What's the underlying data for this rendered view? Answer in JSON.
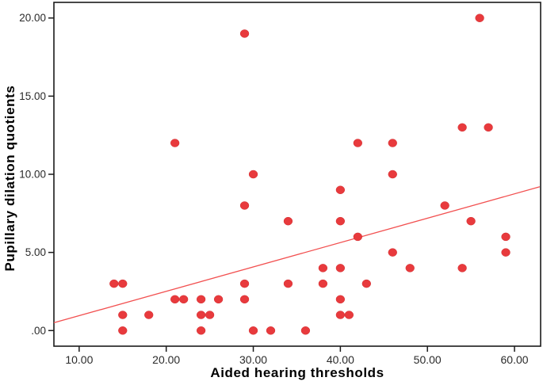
{
  "chart_data": {
    "type": "scatter",
    "title": "",
    "xlabel": "Aided hearing thresholds",
    "ylabel": "Pupillary dilation quotients",
    "xlim": [
      7.1,
      63.0
    ],
    "ylim": [
      -1.0,
      21.0
    ],
    "grid": false,
    "legend": "none",
    "x_ticks": [
      {
        "value": 10,
        "label": "10.00"
      },
      {
        "value": 20,
        "label": "20.00"
      },
      {
        "value": 30,
        "label": "30.00"
      },
      {
        "value": 40,
        "label": "40.00"
      },
      {
        "value": 50,
        "label": "50.00"
      },
      {
        "value": 60,
        "label": "60.00"
      }
    ],
    "y_ticks": [
      {
        "value": 0,
        "label": ".00"
      },
      {
        "value": 5,
        "label": "5.00"
      },
      {
        "value": 10,
        "label": "10.00"
      },
      {
        "value": 15,
        "label": "15.00"
      },
      {
        "value": 20,
        "label": "20.00"
      }
    ],
    "points": [
      [
        14,
        3
      ],
      [
        15,
        3
      ],
      [
        15,
        1
      ],
      [
        15,
        0
      ],
      [
        18,
        1
      ],
      [
        21,
        12
      ],
      [
        21,
        2
      ],
      [
        22,
        2
      ],
      [
        24,
        2
      ],
      [
        24,
        1
      ],
      [
        24,
        0
      ],
      [
        25,
        1
      ],
      [
        26,
        2
      ],
      [
        29,
        19
      ],
      [
        29,
        8
      ],
      [
        29,
        3
      ],
      [
        29,
        2
      ],
      [
        30,
        10
      ],
      [
        30,
        0
      ],
      [
        32,
        0
      ],
      [
        34,
        7
      ],
      [
        34,
        3
      ],
      [
        36,
        0
      ],
      [
        38,
        4
      ],
      [
        38,
        3
      ],
      [
        40,
        9
      ],
      [
        40,
        7
      ],
      [
        40,
        4
      ],
      [
        40,
        2
      ],
      [
        40,
        1
      ],
      [
        41,
        1
      ],
      [
        42,
        12
      ],
      [
        42,
        6
      ],
      [
        43,
        3
      ],
      [
        46,
        12
      ],
      [
        46,
        10
      ],
      [
        46,
        5
      ],
      [
        48,
        4
      ],
      [
        52,
        8
      ],
      [
        54,
        13
      ],
      [
        54,
        4
      ],
      [
        55,
        7
      ],
      [
        56,
        20
      ],
      [
        57,
        13
      ],
      [
        59,
        6
      ],
      [
        59,
        5
      ]
    ],
    "fit_line": {
      "x1": 7.1,
      "y1": 0.5,
      "x2": 62.9,
      "y2": 9.2
    },
    "colors": {
      "point_fill": "#e83a3d",
      "point_edge": "#d32f32",
      "fit_line": "#f25050",
      "frame": "#1b1b1b",
      "tick": "#1b1b1b",
      "tick_label": "#2b2b2b",
      "axis_title": "#000000",
      "background": "#ffffff"
    }
  }
}
